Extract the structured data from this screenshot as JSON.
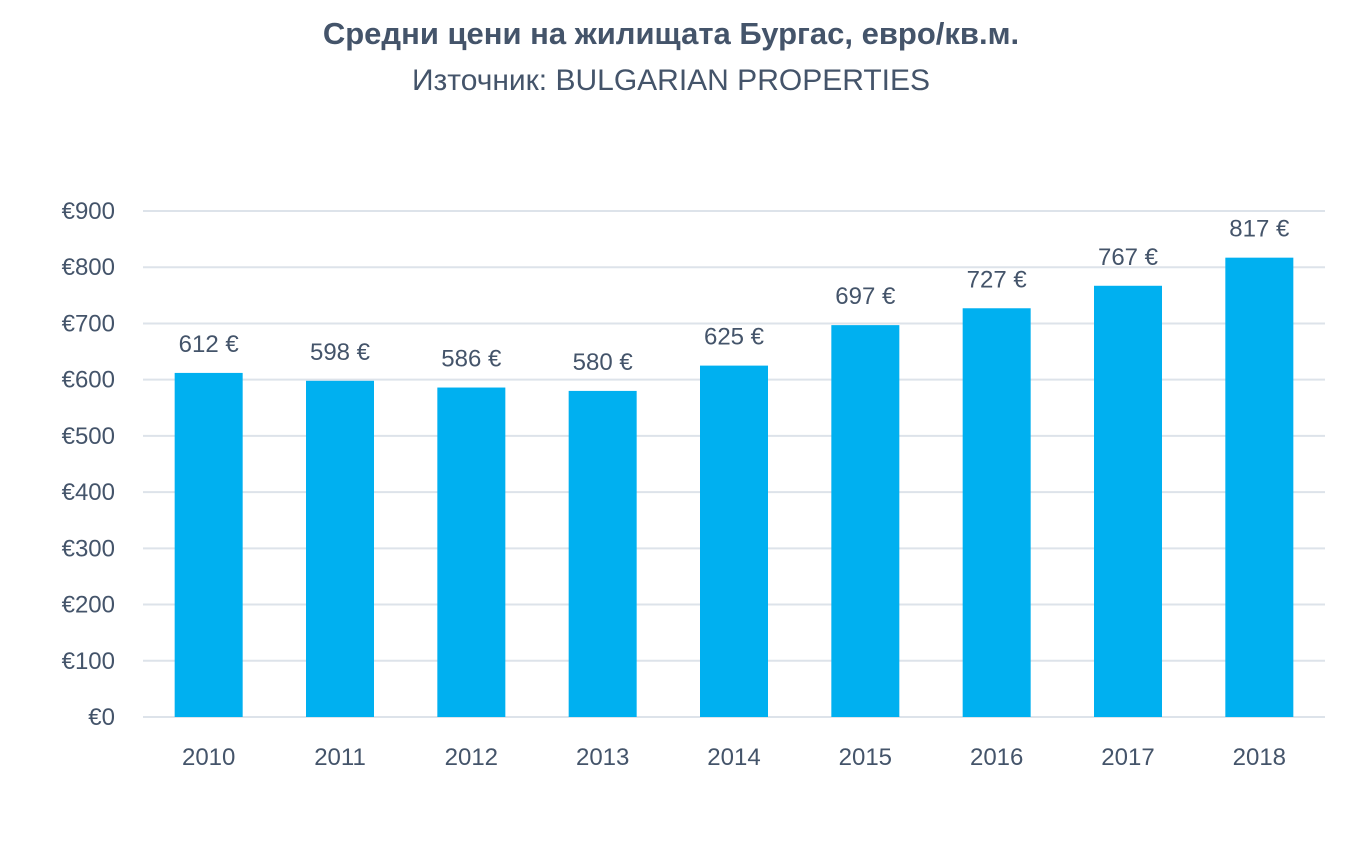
{
  "chart_data": {
    "type": "bar",
    "title": "Средни цени на жилищата Бургас, евро/кв.м.",
    "subtitle": "Източник: BULGARIAN PROPERTIES",
    "categories": [
      "2010",
      "2011",
      "2012",
      "2013",
      "2014",
      "2015",
      "2016",
      "2017",
      "2018"
    ],
    "values": [
      612,
      598,
      586,
      580,
      625,
      697,
      727,
      767,
      817
    ],
    "data_labels": [
      "612 €",
      "598 €",
      "586 €",
      "580 €",
      "625 €",
      "697 €",
      "727 €",
      "767 €",
      "817 €"
    ],
    "yticks": [
      "€0",
      "€100",
      "€200",
      "€300",
      "€400",
      "€500",
      "€600",
      "€700",
      "€800",
      "€900"
    ],
    "ylim": [
      0,
      900
    ],
    "xlabel": "",
    "ylabel": "",
    "grid": true,
    "legend": "none",
    "colors": {
      "bar": "#00b0f0",
      "grid": "#dde3ea",
      "text": "#44546a"
    }
  }
}
